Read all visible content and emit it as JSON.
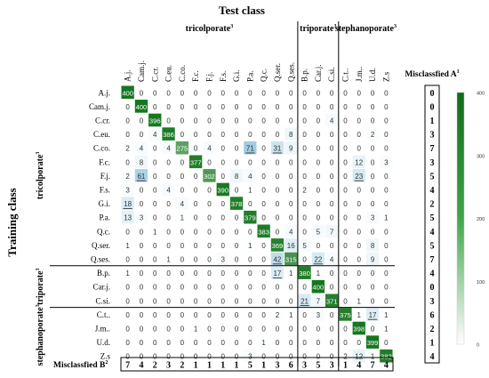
{
  "chart_data": {
    "type": "heatmap",
    "title": "Test class",
    "ylabel": "Training class",
    "groups_x": [
      {
        "label": "tricolporate",
        "sup": "3",
        "start": 0,
        "end": 13
      },
      {
        "label": "triporate",
        "sup": "3",
        "start": 13,
        "end": 16
      },
      {
        "label": "stephanoporate",
        "sup": "3",
        "start": 16,
        "end": 20
      }
    ],
    "groups_y": [
      {
        "label": "tricolporate",
        "sup": "3",
        "start": 0,
        "end": 13
      },
      {
        "label": "triporate",
        "sup": "3",
        "start": 13,
        "end": 16
      },
      {
        "label": "stephanoporate",
        "sup": "3",
        "start": 16,
        "end": 20
      }
    ],
    "columns": [
      "A.j.",
      "Cam.j.",
      "C.cr.",
      "C.eu.",
      "C.co.",
      "F.c.",
      "F.j.",
      "F.s.",
      "G.i.",
      "P.a.",
      "Q.c.",
      "Q.ser.",
      "Q.ses.",
      "B.p.",
      "Car.j.",
      "C.si.",
      "C.t..",
      "J.m..",
      "U.d.",
      "Z.s"
    ],
    "rows": [
      "A.j.",
      "Cam.j.",
      "C.cr.",
      "C.eu.",
      "C.co.",
      "F.c.",
      "F.j.",
      "F.s.",
      "G.i.",
      "P.a.",
      "Q.c.",
      "Q.ser.",
      "Q.ses.",
      "B.p.",
      "Car.j.",
      "C.si.",
      "C.t..",
      "J.m..",
      "U.d.",
      "Z.s"
    ],
    "values": [
      [
        400,
        0,
        0,
        0,
        0,
        0,
        0,
        0,
        0,
        0,
        0,
        0,
        0,
        0,
        0,
        0,
        0,
        0,
        0,
        0
      ],
      [
        0,
        400,
        0,
        0,
        0,
        0,
        0,
        0,
        0,
        0,
        0,
        0,
        0,
        0,
        0,
        0,
        0,
        0,
        0,
        0
      ],
      [
        0,
        0,
        396,
        0,
        0,
        0,
        0,
        0,
        0,
        0,
        0,
        0,
        0,
        0,
        0,
        4,
        0,
        0,
        0,
        0
      ],
      [
        0,
        0,
        4,
        386,
        0,
        0,
        0,
        0,
        0,
        0,
        0,
        0,
        8,
        0,
        0,
        0,
        0,
        0,
        2,
        0
      ],
      [
        2,
        4,
        0,
        4,
        275,
        0,
        4,
        0,
        0,
        71,
        0,
        31,
        9,
        0,
        0,
        0,
        0,
        0,
        0,
        0
      ],
      [
        0,
        8,
        0,
        0,
        0,
        377,
        0,
        0,
        0,
        0,
        0,
        0,
        0,
        0,
        0,
        0,
        0,
        12,
        0,
        3
      ],
      [
        2,
        61,
        0,
        0,
        0,
        0,
        302,
        0,
        8,
        4,
        0,
        0,
        0,
        0,
        0,
        0,
        0,
        23,
        0,
        0
      ],
      [
        3,
        0,
        0,
        4,
        0,
        0,
        0,
        390,
        0,
        1,
        0,
        0,
        0,
        2,
        0,
        0,
        0,
        0,
        0,
        0
      ],
      [
        18,
        0,
        0,
        0,
        4,
        0,
        0,
        0,
        378,
        0,
        0,
        0,
        0,
        0,
        0,
        0,
        0,
        0,
        0,
        0
      ],
      [
        13,
        3,
        0,
        0,
        1,
        0,
        0,
        0,
        0,
        379,
        0,
        0,
        0,
        0,
        0,
        0,
        0,
        0,
        3,
        1
      ],
      [
        0,
        0,
        1,
        0,
        0,
        0,
        0,
        0,
        0,
        0,
        383,
        0,
        4,
        0,
        5,
        7,
        0,
        0,
        0,
        0
      ],
      [
        1,
        0,
        0,
        0,
        0,
        0,
        0,
        0,
        0,
        1,
        0,
        369,
        16,
        5,
        0,
        0,
        0,
        0,
        8,
        0
      ],
      [
        0,
        0,
        0,
        1,
        0,
        0,
        0,
        3,
        0,
        0,
        0,
        42,
        315,
        0,
        22,
        4,
        0,
        0,
        9,
        0
      ],
      [
        1,
        0,
        0,
        0,
        0,
        0,
        0,
        0,
        0,
        0,
        0,
        17,
        1,
        380,
        1,
        0,
        0,
        0,
        0,
        0
      ],
      [
        0,
        0,
        0,
        0,
        0,
        0,
        0,
        0,
        0,
        0,
        0,
        0,
        0,
        0,
        400,
        0,
        0,
        0,
        0,
        0
      ],
      [
        0,
        0,
        0,
        0,
        0,
        0,
        0,
        0,
        0,
        0,
        0,
        0,
        0,
        21,
        7,
        371,
        0,
        1,
        0,
        0
      ],
      [
        0,
        0,
        0,
        0,
        0,
        0,
        0,
        0,
        0,
        0,
        0,
        2,
        1,
        0,
        3,
        0,
        375,
        1,
        17,
        1
      ],
      [
        0,
        0,
        0,
        0,
        0,
        1,
        0,
        0,
        0,
        0,
        0,
        0,
        0,
        0,
        0,
        0,
        0,
        398,
        0,
        1
      ],
      [
        0,
        0,
        0,
        0,
        0,
        0,
        0,
        0,
        0,
        0,
        1,
        0,
        0,
        0,
        0,
        0,
        0,
        0,
        399,
        0
      ],
      [
        0,
        0,
        0,
        0,
        0,
        0,
        0,
        0,
        0,
        3,
        0,
        0,
        0,
        0,
        0,
        0,
        2,
        12,
        1,
        382
      ]
    ],
    "underlined_cells": [
      [
        4,
        9
      ],
      [
        4,
        11
      ],
      [
        6,
        1
      ],
      [
        6,
        17
      ],
      [
        8,
        0
      ],
      [
        12,
        11
      ],
      [
        12,
        14
      ],
      [
        13,
        11
      ],
      [
        15,
        13
      ],
      [
        16,
        18
      ]
    ],
    "misclassified_a": {
      "label": "Misclassfied A",
      "sup": "1",
      "values": [
        0,
        0,
        1,
        3,
        7,
        3,
        5,
        4,
        2,
        5,
        4,
        5,
        7,
        4,
        0,
        3,
        6,
        2,
        1,
        4
      ]
    },
    "misclassified_b": {
      "label": "Misclassfied B",
      "sup": "2",
      "values": [
        7,
        4,
        2,
        3,
        2,
        1,
        1,
        1,
        1,
        5,
        1,
        3,
        6,
        3,
        5,
        3,
        1,
        4,
        7,
        4
      ]
    },
    "colorbar": {
      "ticks": [
        0,
        100,
        200,
        300,
        400
      ],
      "min": 0,
      "max": 400,
      "color_low": "#ffffff",
      "color_mid": "#3f9bbf",
      "color_high": "#0a2a6b",
      "diagonal_color": "#1a7a24"
    }
  }
}
